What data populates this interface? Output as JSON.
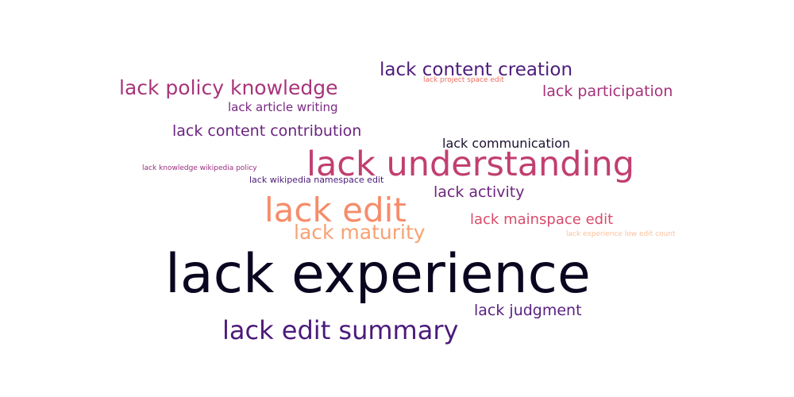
{
  "word_cloud": {
    "words": [
      {
        "text": "lack experience",
        "color": "#0b0620"
      },
      {
        "text": "lack understanding",
        "color": "#c13f70"
      },
      {
        "text": "lack edit",
        "color": "#f68c6b"
      },
      {
        "text": "lack edit summary",
        "color": "#4b1a7b"
      },
      {
        "text": "lack maturity",
        "color": "#f8a173"
      },
      {
        "text": "lack policy knowledge",
        "color": "#a8347a"
      },
      {
        "text": "lack content creation",
        "color": "#4e1d7c"
      },
      {
        "text": "lack participation",
        "color": "#a5327b"
      },
      {
        "text": "lack content contribution",
        "color": "#6b2480"
      },
      {
        "text": "lack judgment",
        "color": "#5a2180"
      },
      {
        "text": "lack activity",
        "color": "#6f2580"
      },
      {
        "text": "lack mainspace edit",
        "color": "#d84c6a"
      },
      {
        "text": "lack communication",
        "color": "#1c1032"
      },
      {
        "text": "lack article writing",
        "color": "#7a2882"
      },
      {
        "text": "lack wikipedia namespace edit",
        "color": "#4a1a78"
      },
      {
        "text": "lack knowledge wikipedia policy",
        "color": "#9a2e7e"
      },
      {
        "text": "lack project space edit",
        "color": "#f06c5e"
      },
      {
        "text": "lack experience low edit count",
        "color": "#fcc09a"
      }
    ]
  }
}
